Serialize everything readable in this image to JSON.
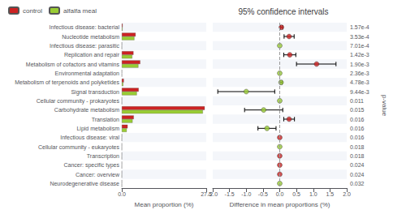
{
  "chart_data": [
    {
      "type": "bar",
      "orientation": "horizontal",
      "categories": [
        "Infectious disease: bacterial",
        "Nucleotide metabolism",
        "Infectious disease: parasitic",
        "Replication and repair",
        "Metabolism of cofactors and vitamins",
        "Environmental adaptation",
        "Metabolism of terpenoids and polyketides",
        "Signal transduction",
        "Cellular community - prokaryotes",
        "Carbohydrate metabolism",
        "Translation",
        "Lipid metabolism",
        "Infectious disease: viral",
        "Cellular community - eukaryotes",
        "Transcription",
        "Cancer: specific types",
        "Cancer: overview",
        "Neurodegenerative disease"
      ],
      "series": [
        {
          "name": "control",
          "color": "#cc2222",
          "values": [
            0.28,
            4.5,
            0.05,
            3.8,
            6.0,
            0.07,
            0.65,
            5.5,
            0.06,
            27.0,
            3.9,
            1.9,
            0.05,
            0.05,
            0.05,
            0.05,
            0.05,
            0.05
          ]
        },
        {
          "name": "alfalfa meal",
          "color": "#99cc33",
          "values": [
            0.22,
            4.1,
            0.04,
            3.4,
            5.4,
            0.06,
            0.45,
            4.9,
            0.05,
            26.4,
            3.5,
            1.6,
            0.04,
            0.04,
            0.04,
            0.04,
            0.04,
            0.04
          ]
        }
      ],
      "xlabel": "Mean proportion (%)",
      "xlim": [
        0,
        27.5
      ],
      "xticks": [
        {
          "value": 0,
          "label": "0.0"
        },
        27.5
      ],
      "legend": "upper left",
      "grid": false
    },
    {
      "type": "scatter",
      "title": "95% confidence intervals",
      "categories": [
        "Infectious disease: bacterial",
        "Nucleotide metabolism",
        "Infectious disease: parasitic",
        "Replication and repair",
        "Metabolism of cofactors and vitamins",
        "Environmental adaptation",
        "Metabolism of terpenoids and polyketides",
        "Signal transduction",
        "Cellular community - prokaryotes",
        "Carbohydrate metabolism",
        "Translation",
        "Lipid metabolism",
        "Infectious disease: viral",
        "Cellular community - eukaryotes",
        "Transcription",
        "Cancer: specific types",
        "Cancer: overview",
        "Neurodegenerative disease"
      ],
      "values": [
        0.05,
        0.28,
        0.0,
        0.3,
        1.1,
        0.0,
        0.04,
        -1.0,
        0.0,
        -0.48,
        0.28,
        -0.38,
        0.0,
        0.0,
        0.0,
        0.0,
        0.0,
        0.0
      ],
      "colors": [
        "#cc2222",
        "#cc2222",
        "#99cc33",
        "#cc2222",
        "#cc2222",
        "#99cc33",
        "#99cc33",
        "#99cc33",
        "#99cc33",
        "#99cc33",
        "#cc2222",
        "#99cc33",
        "#cc2222",
        "#99cc33",
        "#cc2222",
        "#cc2222",
        "#cc2222",
        "#99cc33"
      ],
      "ci_low": [
        0.02,
        0.13,
        null,
        0.12,
        0.5,
        null,
        0.01,
        -1.85,
        null,
        -1.05,
        0.12,
        -0.65,
        null,
        null,
        null,
        null,
        null,
        null
      ],
      "ci_high": [
        0.09,
        0.43,
        null,
        0.48,
        1.68,
        null,
        0.07,
        -0.15,
        null,
        0.09,
        0.44,
        -0.11,
        null,
        null,
        null,
        null,
        null,
        null
      ],
      "reference_line": 0,
      "pvalues": [
        "1.57e-4",
        "3.53e-4",
        "7.01e-4",
        "1.42e-3",
        "1.90e-3",
        "2.36e-3",
        "4.78e-3",
        "9.44e-3",
        "0.011",
        "0.015",
        "0.016",
        "0.016",
        "0.016",
        "0.018",
        "0.018",
        "0.024",
        "0.024",
        "0.032"
      ],
      "pvalue_label": "p-value",
      "xlabel": "Difference in mean proportions (%)",
      "xlim": [
        -2.0,
        2.0
      ],
      "xticks": [
        {
          "value": -2.0,
          "label": "-2.0"
        },
        -1.5,
        {
          "value": -1.0,
          "label": "-1.0"
        },
        -0.5,
        {
          "value": 0.0,
          "label": "0.0"
        },
        0.5,
        {
          "value": 1.0,
          "label": "1.0"
        },
        1.5,
        {
          "value": 2.0,
          "label": "2.0"
        }
      ],
      "tick_labels": "x",
      "grid": false
    }
  ]
}
